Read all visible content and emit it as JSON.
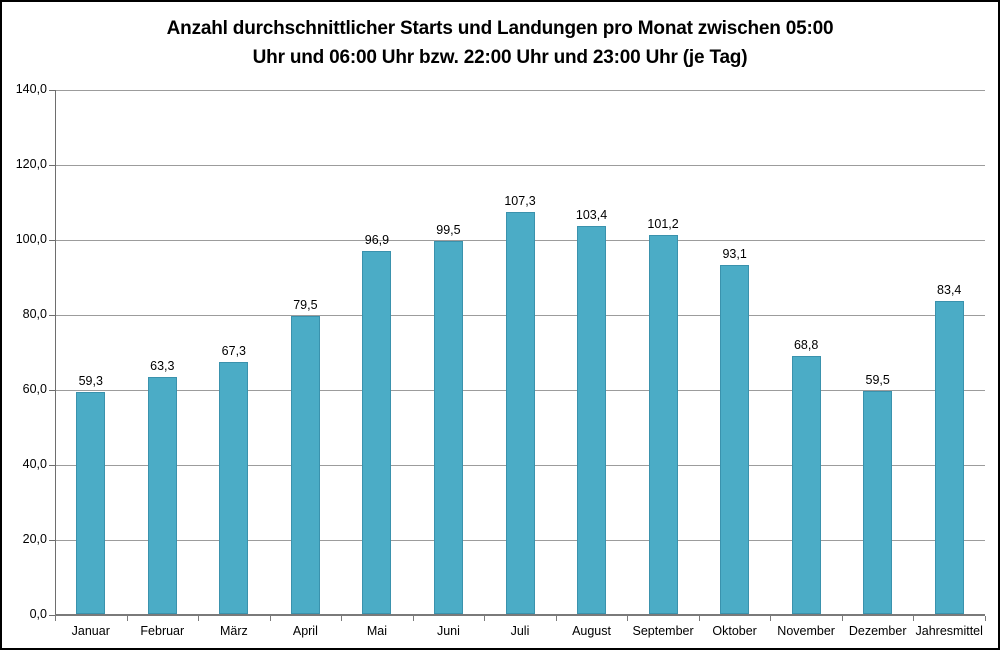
{
  "window": {
    "background_color": "#ffffff",
    "border_color": "#000000"
  },
  "chart_data": {
    "type": "bar",
    "title": "Anzahl durchschnittlicher Starts und Landungen pro Monat zwischen 05:00 Uhr und 06:00 Uhr bzw. 22:00 Uhr und 23:00 Uhr (je Tag)",
    "title_lines": [
      "Anzahl durchschnittlicher Starts und Landungen pro Monat zwischen 05:00",
      "Uhr und 06:00 Uhr bzw. 22:00 Uhr und 23:00 Uhr (je Tag)"
    ],
    "categories": [
      "Januar",
      "Februar",
      "März",
      "April",
      "Mai",
      "Juni",
      "Juli",
      "August",
      "September",
      "Oktober",
      "November",
      "Dezember",
      "Jahresmittel"
    ],
    "values": [
      59.3,
      63.3,
      67.3,
      79.5,
      96.9,
      99.5,
      107.3,
      103.4,
      101.2,
      93.1,
      68.8,
      59.5,
      83.4
    ],
    "value_labels": [
      "59,3",
      "63,3",
      "67,3",
      "79,5",
      "96,9",
      "99,5",
      "107,3",
      "103,4",
      "101,2",
      "93,1",
      "68,8",
      "59,5",
      "83,4"
    ],
    "xlabel": "",
    "ylabel": "",
    "ylim": [
      0,
      140
    ],
    "ytick_step": 20,
    "ytick_labels": [
      "0,0",
      "20,0",
      "40,0",
      "60,0",
      "80,0",
      "100,0",
      "120,0",
      "140,0"
    ],
    "grid": "horizontal",
    "legend": "none",
    "decimal_separator": ",",
    "colors": {
      "bar_fill": "#4bacc6",
      "bar_border": "#3a92ad",
      "gridline": "#9c9c9c",
      "axis": "#6e6e6e",
      "title_text": "#000000",
      "label_text": "#000000"
    }
  }
}
